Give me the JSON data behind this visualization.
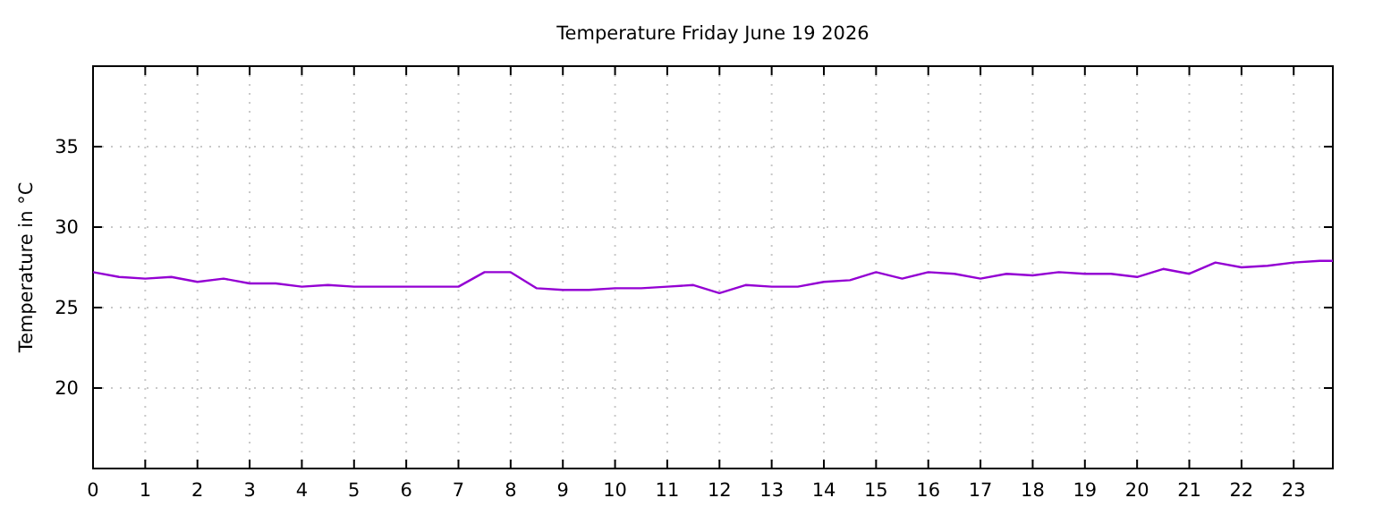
{
  "chart_data": {
    "type": "line",
    "title": "Temperature Friday June 19 2026",
    "ylabel": "Temperature in °C",
    "x": [
      0,
      0.5,
      1,
      1.5,
      2,
      2.5,
      3,
      3.5,
      4,
      4.5,
      5,
      5.5,
      6,
      6.5,
      7,
      7.5,
      8,
      8.5,
      9,
      9.5,
      10,
      10.5,
      11,
      11.5,
      12,
      12.5,
      13,
      13.5,
      14,
      14.5,
      15,
      15.5,
      16,
      16.5,
      17,
      17.5,
      18,
      18.5,
      19,
      19.5,
      20,
      20.5,
      21,
      21.5,
      22,
      22.5,
      23,
      23.5,
      23.75
    ],
    "series": [
      {
        "color": "#9400d3",
        "values": [
          27.2,
          26.9,
          26.8,
          26.9,
          26.6,
          26.8,
          26.5,
          26.5,
          26.3,
          26.4,
          26.3,
          26.3,
          26.3,
          26.3,
          26.3,
          27.2,
          27.2,
          26.2,
          26.1,
          26.1,
          26.2,
          26.2,
          26.3,
          26.4,
          25.9,
          26.4,
          26.3,
          26.3,
          26.6,
          26.7,
          27.2,
          26.8,
          27.2,
          27.1,
          26.8,
          27.1,
          27.0,
          27.2,
          27.1,
          27.1,
          26.9,
          27.4,
          27.1,
          27.8,
          27.5,
          27.6,
          27.8,
          27.9,
          27.9
        ]
      }
    ],
    "xlim": [
      0,
      23.75
    ],
    "xticks": [
      0,
      1,
      2,
      3,
      4,
      5,
      6,
      7,
      8,
      9,
      10,
      11,
      12,
      13,
      14,
      15,
      16,
      17,
      18,
      19,
      20,
      21,
      22,
      23
    ],
    "ylim": [
      15,
      40
    ],
    "yticks": [
      20,
      25,
      30,
      35
    ],
    "grid": true
  }
}
